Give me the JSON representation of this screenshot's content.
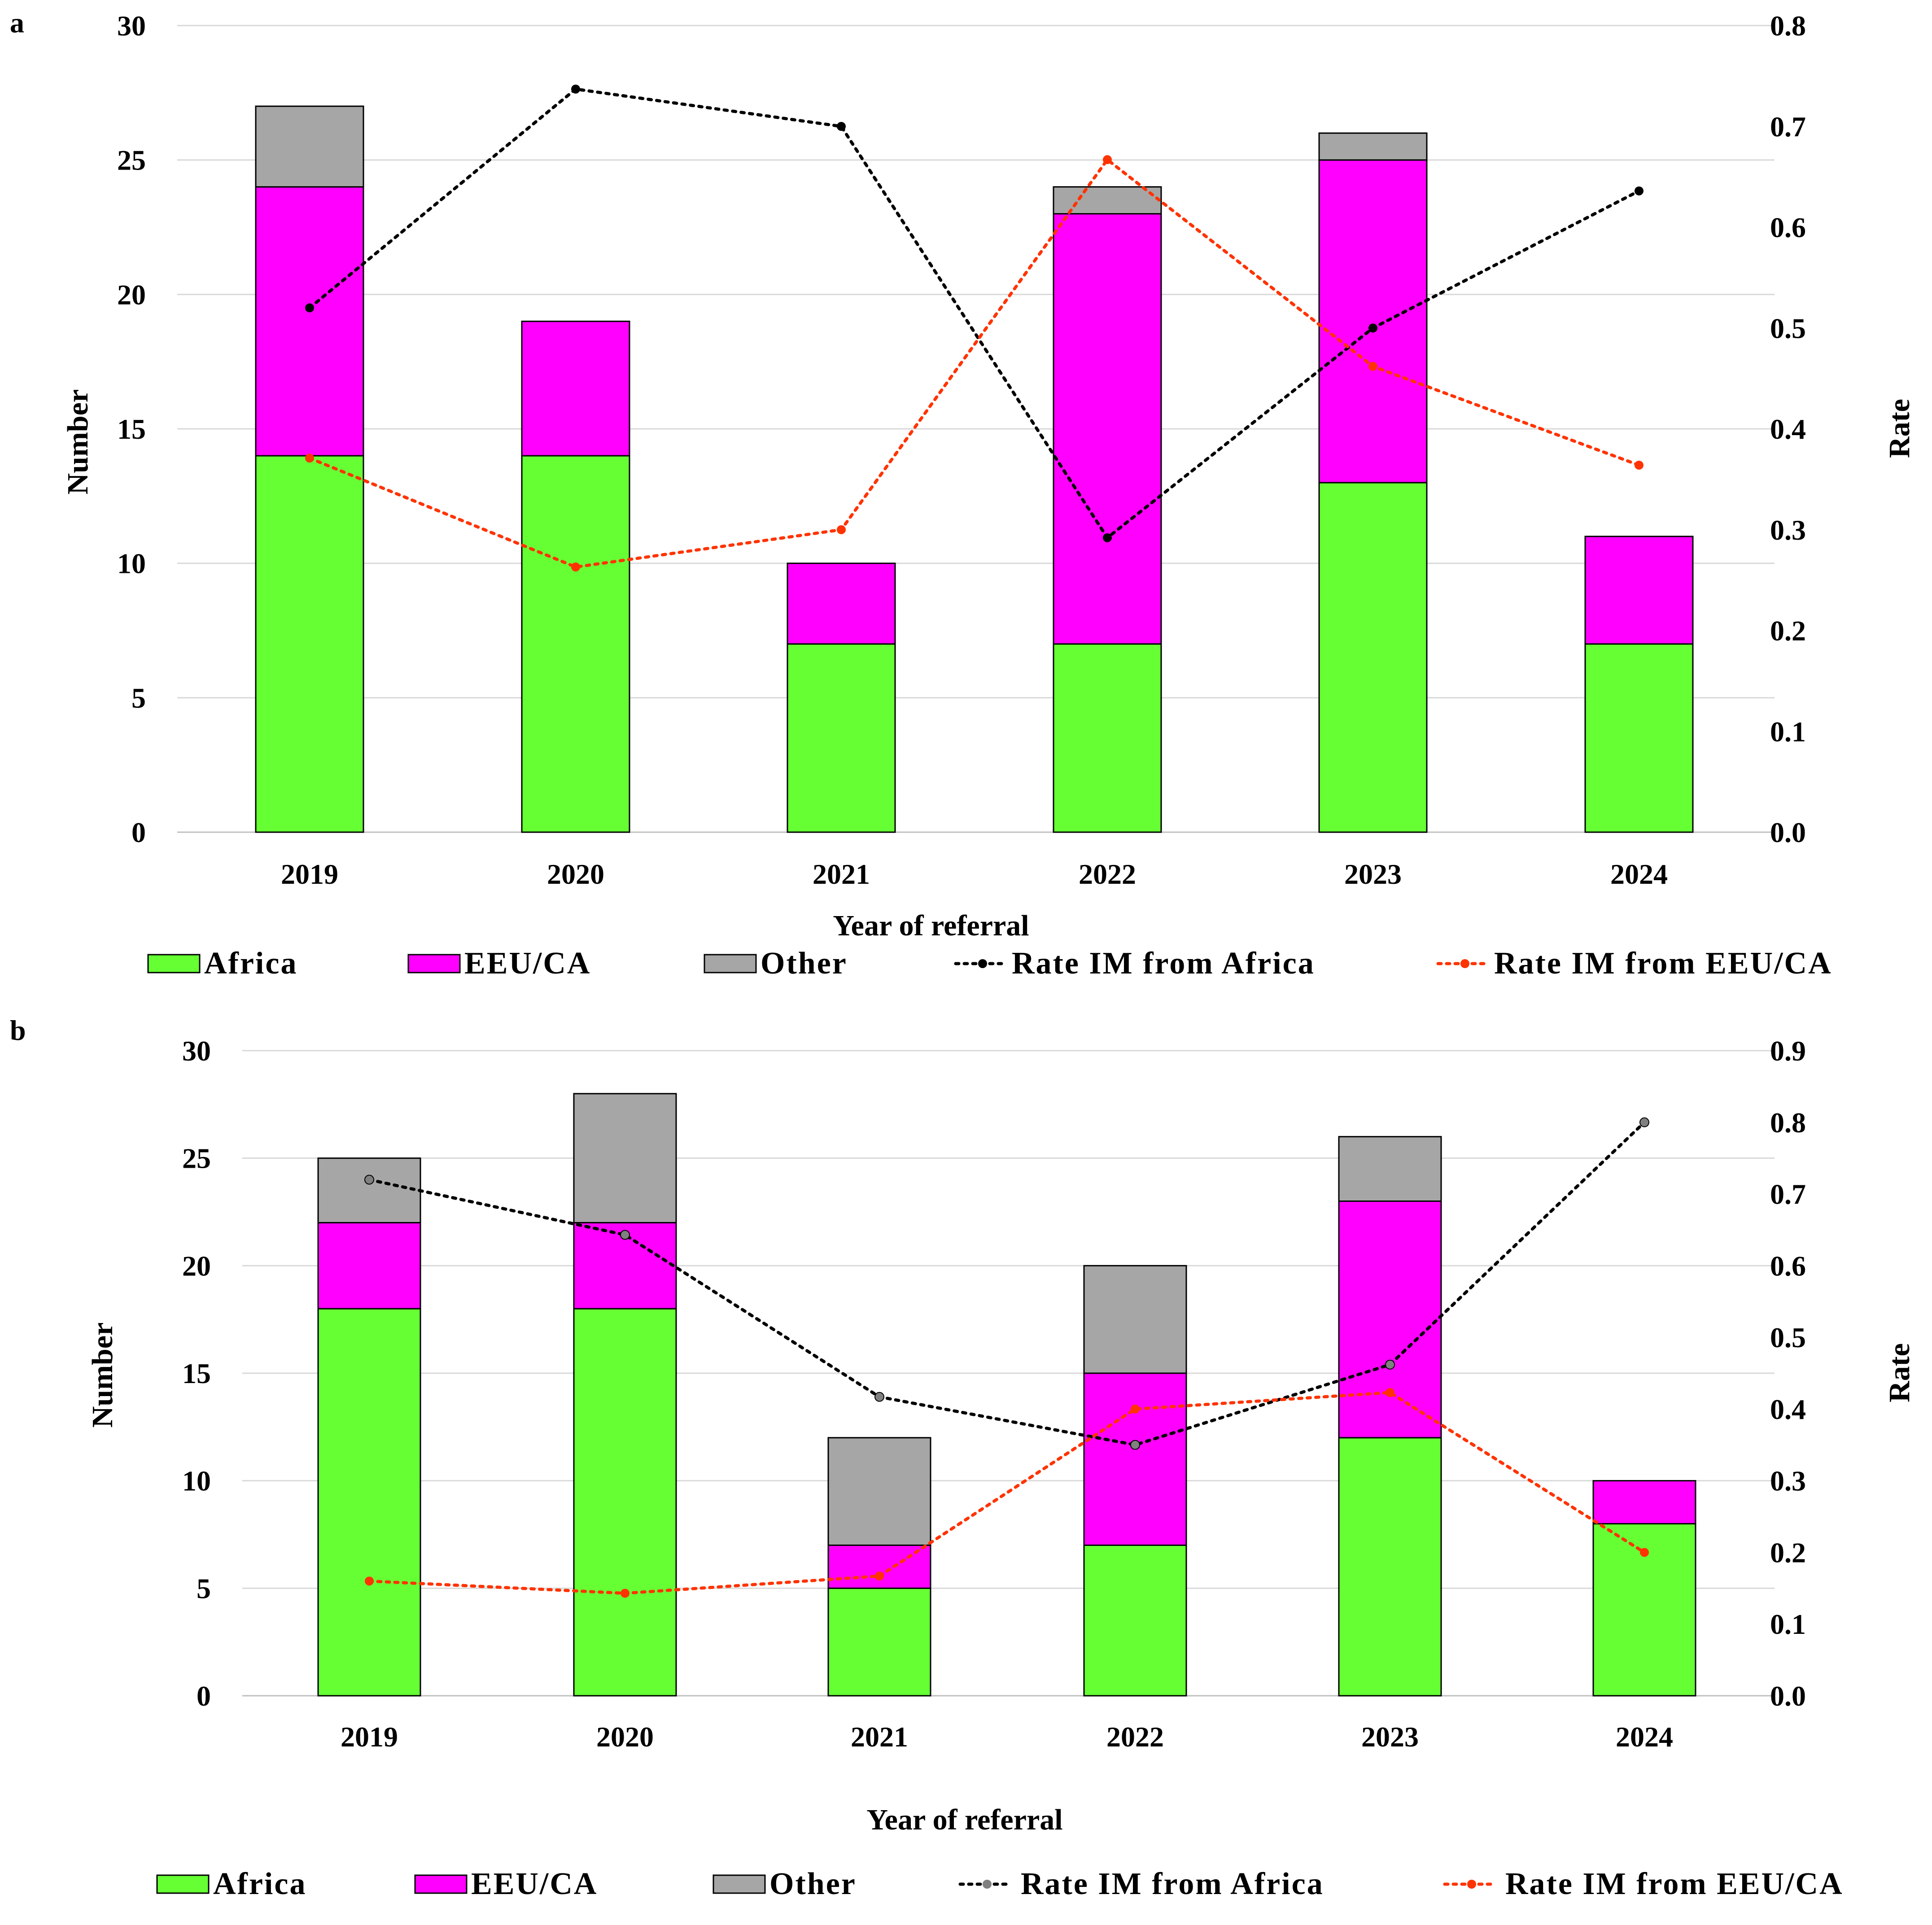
{
  "chart_data": [
    {
      "panel": "a",
      "type": "bar",
      "stacked": true,
      "categories": [
        "2019",
        "2020",
        "2021",
        "2022",
        "2023",
        "2024"
      ],
      "series": [
        {
          "name": "Africa",
          "kind": "bar",
          "axis": "left",
          "color": "#66ff33",
          "values": [
            14,
            14,
            7,
            7,
            13,
            7
          ]
        },
        {
          "name": "EEU/CA",
          "kind": "bar",
          "axis": "left",
          "color": "#ff00ff",
          "values": [
            10,
            5,
            3,
            16,
            12,
            4
          ]
        },
        {
          "name": "Other",
          "kind": "bar",
          "axis": "left",
          "color": "#a6a6a6",
          "values": [
            3,
            0,
            0,
            1,
            1,
            0
          ]
        },
        {
          "name": "Rate IM from Africa",
          "kind": "line",
          "axis": "right",
          "color": "#000000",
          "marker": "#000000",
          "values": [
            0.52,
            0.737,
            0.7,
            0.292,
            0.5,
            0.636
          ]
        },
        {
          "name": "Rate IM from EEU/CA",
          "kind": "line",
          "axis": "right",
          "color": "#ff3300",
          "marker": "#ff3300",
          "values": [
            0.371,
            0.263,
            0.3,
            0.667,
            0.462,
            0.364
          ]
        }
      ],
      "xlabel": "Year of referral",
      "ylabel": "Number",
      "y2label": "Rate",
      "ylim": [
        0,
        30
      ],
      "y2lim": [
        0,
        0.8
      ],
      "yticks": [
        "0",
        "5",
        "10",
        "15",
        "20",
        "25",
        "30"
      ],
      "y2ticks": [
        "0.0",
        "0.1",
        "0.2",
        "0.3",
        "0.4",
        "0.5",
        "0.6",
        "0.7",
        "0.8"
      ],
      "legend": [
        "Africa",
        "EEU/CA",
        "Other",
        "Rate IM from Africa",
        "Rate IM from EEU/CA"
      ],
      "legend_position": "bottom",
      "grid": true
    },
    {
      "panel": "b",
      "type": "bar",
      "stacked": true,
      "categories": [
        "2019",
        "2020",
        "2021",
        "2022",
        "2023",
        "2024"
      ],
      "series": [
        {
          "name": "Africa",
          "kind": "bar",
          "axis": "left",
          "color": "#66ff33",
          "values": [
            18,
            18,
            5,
            7,
            12,
            8
          ]
        },
        {
          "name": "EEU/CA",
          "kind": "bar",
          "axis": "left",
          "color": "#ff00ff",
          "values": [
            4,
            4,
            2,
            8,
            11,
            2
          ]
        },
        {
          "name": "Other",
          "kind": "bar",
          "axis": "left",
          "color": "#a6a6a6",
          "values": [
            3,
            6,
            5,
            5,
            3,
            0
          ]
        },
        {
          "name": "Rate IM from Africa",
          "kind": "line",
          "axis": "right",
          "color": "#000000",
          "marker": "#808080",
          "values": [
            0.72,
            0.643,
            0.417,
            0.35,
            0.462,
            0.8
          ]
        },
        {
          "name": "Rate IM from EEU/CA",
          "kind": "line",
          "axis": "right",
          "color": "#ff3300",
          "marker": "#ff3300",
          "values": [
            0.16,
            0.143,
            0.167,
            0.4,
            0.423,
            0.2
          ]
        }
      ],
      "xlabel": "Year of referral",
      "ylabel": "Number",
      "y2label": "Rate",
      "ylim": [
        0,
        30
      ],
      "y2lim": [
        0,
        0.9
      ],
      "yticks": [
        "0",
        "5",
        "10",
        "15",
        "20",
        "25",
        "30"
      ],
      "y2ticks": [
        "0.0",
        "0.1",
        "0.2",
        "0.3",
        "0.4",
        "0.5",
        "0.6",
        "0.7",
        "0.8",
        "0.9"
      ],
      "legend": [
        "Africa",
        "EEU/CA",
        "Other",
        "Rate IM from Africa",
        "Rate IM from EEU/CA"
      ],
      "legend_position": "bottom",
      "grid": true
    }
  ]
}
